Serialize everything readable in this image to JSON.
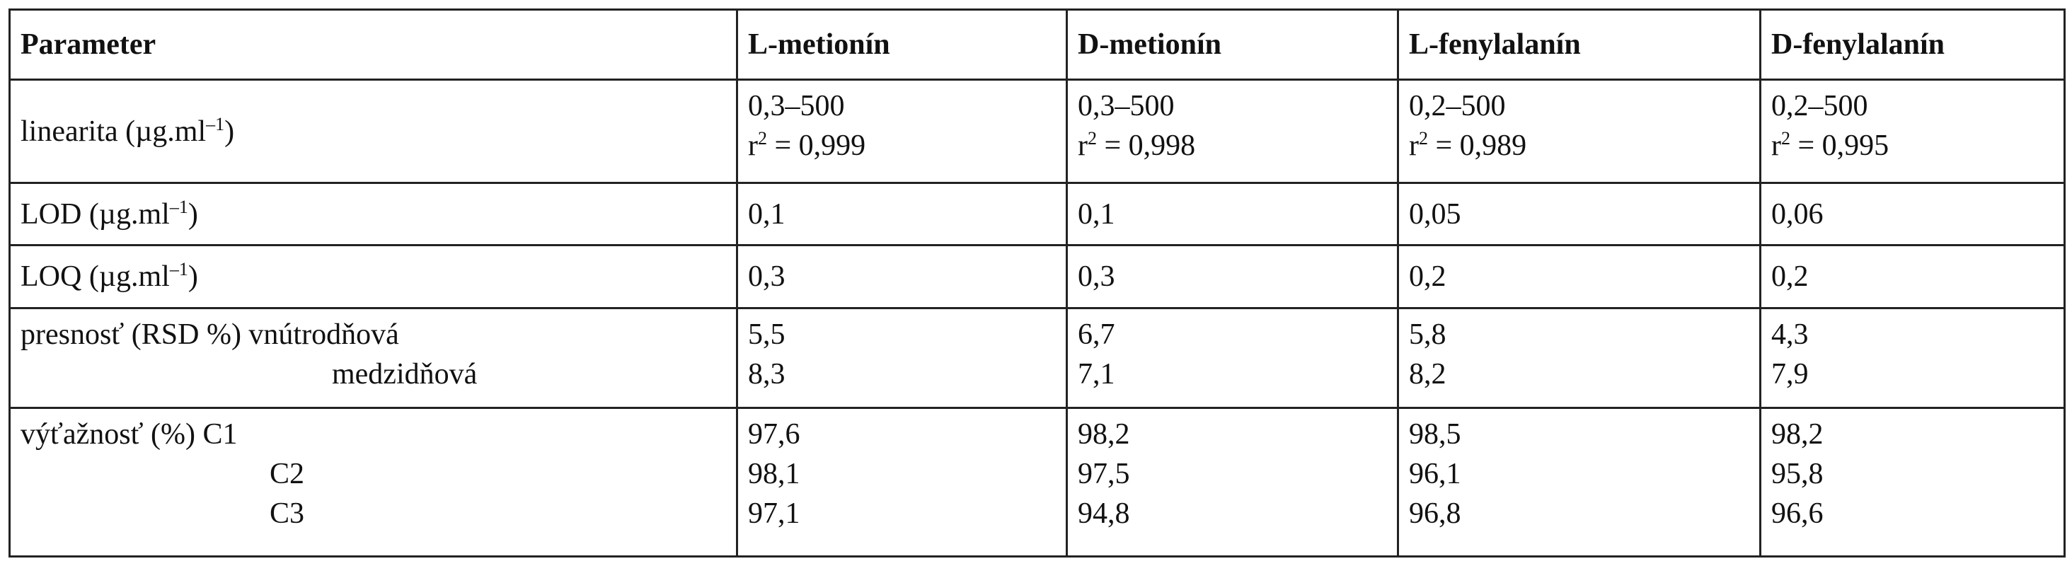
{
  "table": {
    "headers": [
      "Parameter",
      "L-metionín",
      "D-metionín",
      "L-fenylalanín",
      "D-fenylalanín"
    ],
    "linearita": {
      "label": "linearita (µg.ml",
      "label_sup": "–1",
      "label_end": ")",
      "range": [
        "0,3–500",
        "0,3–500",
        "0,2–500",
        "0,2–500"
      ],
      "r_prefix": "r",
      "r_sup": "2",
      "r_values": [
        " = 0,999",
        " = 0,998",
        " = 0,989",
        " = 0,995"
      ]
    },
    "lod": {
      "label": "LOD (µg.ml",
      "label_sup": "–1",
      "label_end": ")",
      "values": [
        "0,1",
        "0,1",
        "0,05",
        "0,06"
      ]
    },
    "loq": {
      "label": "LOQ (µg.ml",
      "label_sup": "–1",
      "label_end": ")",
      "values": [
        "0,3",
        "0,3",
        "0,2",
        "0,2"
      ]
    },
    "presnost": {
      "label_1": "presnosť (RSD %) vnútrodňová",
      "label_2": "medzidňová",
      "intra": [
        "5,5",
        "6,7",
        "5,8",
        "4,3"
      ],
      "inter": [
        "8,3",
        "7,1",
        "8,2",
        "7,9"
      ]
    },
    "vytaznost": {
      "label_1": "výťažnosť (%) C1",
      "label_2": "C2",
      "label_3": "C3",
      "c1": [
        "97,6",
        "98,2",
        "98,5",
        "98,2"
      ],
      "c2": [
        "98,1",
        "97,5",
        "96,1",
        "95,8"
      ],
      "c3": [
        "97,1",
        "94,8",
        "96,8",
        "96,6"
      ]
    }
  }
}
